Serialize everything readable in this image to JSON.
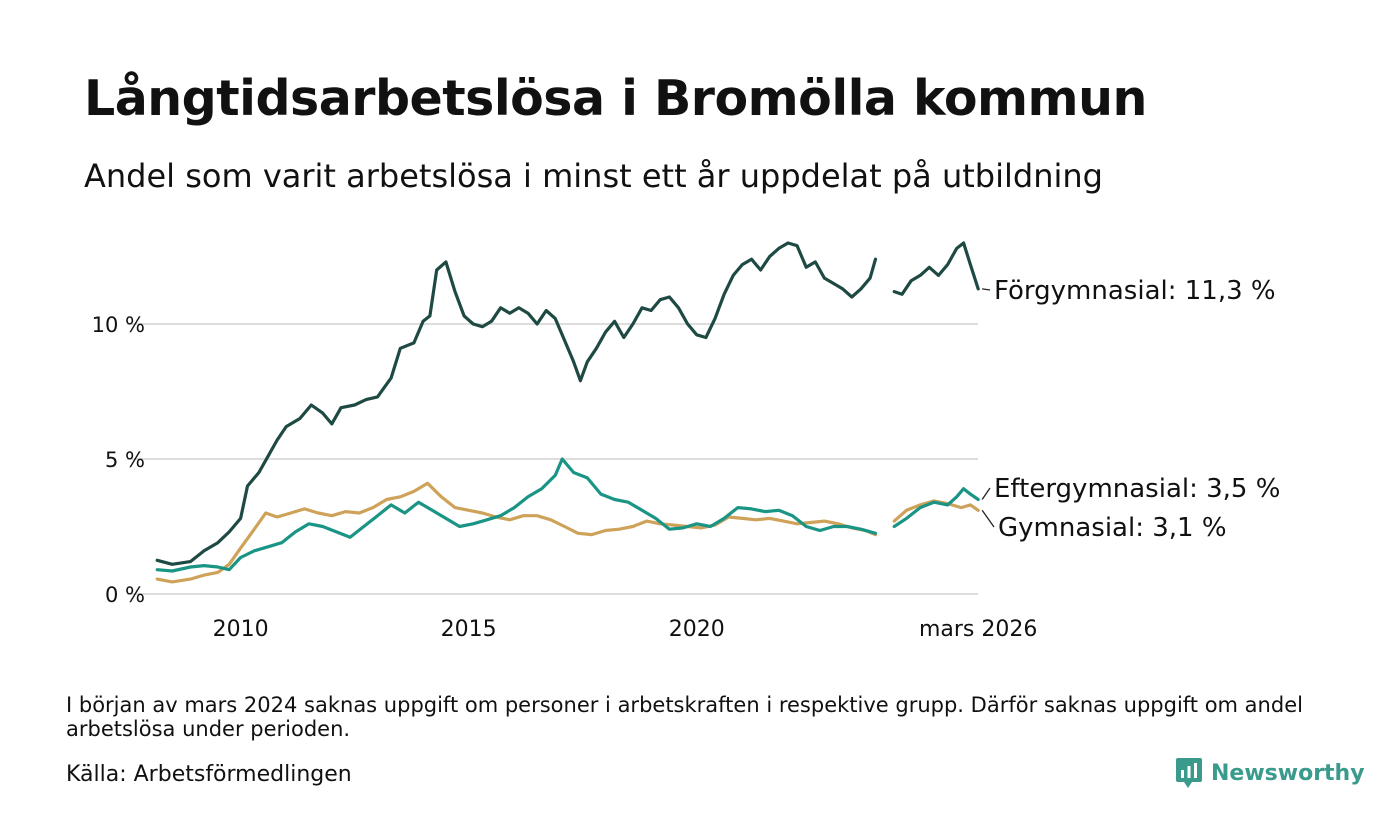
{
  "header": {
    "title": "Långtidsarbetslösa i Bromölla kommun",
    "subtitle": "Andel som varit arbetslösa i minst ett år uppdelat på utbildning"
  },
  "chart_data": {
    "type": "line",
    "x_start": "2008-03",
    "x_end": "2026-03",
    "y_ticks": [
      {
        "value": 0,
        "label": "0 %"
      },
      {
        "value": 5,
        "label": "5 %"
      },
      {
        "value": 10,
        "label": "10 %"
      }
    ],
    "x_ticks": [
      {
        "date": 2010.0,
        "label": "2010"
      },
      {
        "date": 2015.0,
        "label": "2015"
      },
      {
        "date": 2020.0,
        "label": "2020"
      },
      {
        "date": 2026.17,
        "label": "mars 2026"
      }
    ],
    "ylim": [
      0,
      13.5
    ],
    "gap": {
      "from": 2023.95,
      "to": 2024.3
    },
    "series": [
      {
        "name": "Förgymnasial",
        "end_label": "Förgymnasial: 11,3 %",
        "color": "#1f4a44",
        "points": [
          [
            2008.17,
            1.25
          ],
          [
            2008.5,
            1.1
          ],
          [
            2008.9,
            1.2
          ],
          [
            2009.2,
            1.6
          ],
          [
            2009.5,
            1.9
          ],
          [
            2009.75,
            2.3
          ],
          [
            2010.0,
            2.8
          ],
          [
            2010.15,
            4.0
          ],
          [
            2010.4,
            4.5
          ],
          [
            2010.6,
            5.1
          ],
          [
            2010.8,
            5.7
          ],
          [
            2011.0,
            6.2
          ],
          [
            2011.3,
            6.5
          ],
          [
            2011.55,
            7.0
          ],
          [
            2011.8,
            6.7
          ],
          [
            2012.0,
            6.3
          ],
          [
            2012.2,
            6.9
          ],
          [
            2012.5,
            7.0
          ],
          [
            2012.75,
            7.2
          ],
          [
            2013.0,
            7.3
          ],
          [
            2013.3,
            8.0
          ],
          [
            2013.5,
            9.1
          ],
          [
            2013.8,
            9.3
          ],
          [
            2014.0,
            10.1
          ],
          [
            2014.15,
            10.3
          ],
          [
            2014.3,
            12.0
          ],
          [
            2014.5,
            12.3
          ],
          [
            2014.7,
            11.2
          ],
          [
            2014.9,
            10.3
          ],
          [
            2015.1,
            10.0
          ],
          [
            2015.3,
            9.9
          ],
          [
            2015.5,
            10.1
          ],
          [
            2015.7,
            10.6
          ],
          [
            2015.9,
            10.4
          ],
          [
            2016.1,
            10.6
          ],
          [
            2016.3,
            10.4
          ],
          [
            2016.5,
            10.0
          ],
          [
            2016.7,
            10.5
          ],
          [
            2016.9,
            10.2
          ],
          [
            2017.1,
            9.4
          ],
          [
            2017.3,
            8.6
          ],
          [
            2017.45,
            7.9
          ],
          [
            2017.6,
            8.6
          ],
          [
            2017.8,
            9.1
          ],
          [
            2018.0,
            9.7
          ],
          [
            2018.2,
            10.1
          ],
          [
            2018.4,
            9.5
          ],
          [
            2018.6,
            10.0
          ],
          [
            2018.8,
            10.6
          ],
          [
            2019.0,
            10.5
          ],
          [
            2019.2,
            10.9
          ],
          [
            2019.4,
            11.0
          ],
          [
            2019.6,
            10.6
          ],
          [
            2019.8,
            10.0
          ],
          [
            2020.0,
            9.6
          ],
          [
            2020.2,
            9.5
          ],
          [
            2020.4,
            10.2
          ],
          [
            2020.6,
            11.1
          ],
          [
            2020.8,
            11.8
          ],
          [
            2021.0,
            12.2
          ],
          [
            2021.2,
            12.4
          ],
          [
            2021.4,
            12.0
          ],
          [
            2021.6,
            12.5
          ],
          [
            2021.8,
            12.8
          ],
          [
            2022.0,
            13.0
          ],
          [
            2022.2,
            12.9
          ],
          [
            2022.4,
            12.1
          ],
          [
            2022.6,
            12.3
          ],
          [
            2022.8,
            11.7
          ],
          [
            2023.0,
            11.5
          ],
          [
            2023.2,
            11.3
          ],
          [
            2023.4,
            11.0
          ],
          [
            2023.6,
            11.3
          ],
          [
            2023.8,
            11.7
          ],
          [
            2023.92,
            12.4
          ],
          null,
          [
            2024.33,
            11.2
          ],
          [
            2024.5,
            11.1
          ],
          [
            2024.7,
            11.6
          ],
          [
            2024.9,
            11.8
          ],
          [
            2025.1,
            12.1
          ],
          [
            2025.3,
            11.8
          ],
          [
            2025.5,
            12.2
          ],
          [
            2025.7,
            12.8
          ],
          [
            2025.85,
            13.0
          ],
          [
            2026.0,
            12.2
          ],
          [
            2026.17,
            11.3
          ]
        ]
      },
      {
        "name": "Eftergymnasial",
        "end_label": "Eftergymnasial:  3,5 %",
        "color": "#1a9585",
        "points": [
          [
            2008.17,
            0.9
          ],
          [
            2008.5,
            0.85
          ],
          [
            2008.9,
            1.0
          ],
          [
            2009.2,
            1.05
          ],
          [
            2009.5,
            1.0
          ],
          [
            2009.75,
            0.9
          ],
          [
            2010.0,
            1.35
          ],
          [
            2010.3,
            1.6
          ],
          [
            2010.6,
            1.75
          ],
          [
            2010.9,
            1.9
          ],
          [
            2011.2,
            2.3
          ],
          [
            2011.5,
            2.6
          ],
          [
            2011.8,
            2.5
          ],
          [
            2012.1,
            2.3
          ],
          [
            2012.4,
            2.1
          ],
          [
            2012.7,
            2.5
          ],
          [
            2013.0,
            2.9
          ],
          [
            2013.3,
            3.3
          ],
          [
            2013.6,
            3.0
          ],
          [
            2013.9,
            3.4
          ],
          [
            2014.2,
            3.1
          ],
          [
            2014.5,
            2.8
          ],
          [
            2014.8,
            2.5
          ],
          [
            2015.1,
            2.6
          ],
          [
            2015.4,
            2.75
          ],
          [
            2015.7,
            2.9
          ],
          [
            2016.0,
            3.2
          ],
          [
            2016.3,
            3.6
          ],
          [
            2016.6,
            3.9
          ],
          [
            2016.9,
            4.4
          ],
          [
            2017.05,
            5.0
          ],
          [
            2017.3,
            4.5
          ],
          [
            2017.6,
            4.3
          ],
          [
            2017.9,
            3.7
          ],
          [
            2018.2,
            3.5
          ],
          [
            2018.5,
            3.4
          ],
          [
            2018.8,
            3.1
          ],
          [
            2019.1,
            2.8
          ],
          [
            2019.4,
            2.4
          ],
          [
            2019.7,
            2.45
          ],
          [
            2020.0,
            2.6
          ],
          [
            2020.3,
            2.5
          ],
          [
            2020.6,
            2.8
          ],
          [
            2020.9,
            3.2
          ],
          [
            2021.2,
            3.15
          ],
          [
            2021.5,
            3.05
          ],
          [
            2021.8,
            3.1
          ],
          [
            2022.1,
            2.9
          ],
          [
            2022.4,
            2.5
          ],
          [
            2022.7,
            2.35
          ],
          [
            2023.0,
            2.5
          ],
          [
            2023.3,
            2.5
          ],
          [
            2023.6,
            2.4
          ],
          [
            2023.92,
            2.25
          ],
          null,
          [
            2024.33,
            2.5
          ],
          [
            2024.6,
            2.8
          ],
          [
            2024.9,
            3.2
          ],
          [
            2025.2,
            3.4
          ],
          [
            2025.5,
            3.3
          ],
          [
            2025.7,
            3.6
          ],
          [
            2025.85,
            3.9
          ],
          [
            2026.0,
            3.7
          ],
          [
            2026.17,
            3.5
          ]
        ]
      },
      {
        "name": "Gymnasial",
        "end_label": "Gymnasial:  3,1 %",
        "color": "#cfa25a",
        "points": [
          [
            2008.17,
            0.55
          ],
          [
            2008.5,
            0.45
          ],
          [
            2008.9,
            0.55
          ],
          [
            2009.2,
            0.7
          ],
          [
            2009.5,
            0.8
          ],
          [
            2009.75,
            1.1
          ],
          [
            2010.0,
            1.7
          ],
          [
            2010.3,
            2.4
          ],
          [
            2010.55,
            3.0
          ],
          [
            2010.8,
            2.85
          ],
          [
            2011.1,
            3.0
          ],
          [
            2011.4,
            3.15
          ],
          [
            2011.7,
            3.0
          ],
          [
            2012.0,
            2.9
          ],
          [
            2012.3,
            3.05
          ],
          [
            2012.6,
            3.0
          ],
          [
            2012.9,
            3.2
          ],
          [
            2013.2,
            3.5
          ],
          [
            2013.5,
            3.6
          ],
          [
            2013.8,
            3.8
          ],
          [
            2014.1,
            4.1
          ],
          [
            2014.4,
            3.6
          ],
          [
            2014.7,
            3.2
          ],
          [
            2015.0,
            3.1
          ],
          [
            2015.3,
            3.0
          ],
          [
            2015.6,
            2.85
          ],
          [
            2015.9,
            2.75
          ],
          [
            2016.2,
            2.9
          ],
          [
            2016.5,
            2.9
          ],
          [
            2016.8,
            2.75
          ],
          [
            2017.1,
            2.5
          ],
          [
            2017.4,
            2.25
          ],
          [
            2017.7,
            2.2
          ],
          [
            2018.0,
            2.35
          ],
          [
            2018.3,
            2.4
          ],
          [
            2018.6,
            2.5
          ],
          [
            2018.9,
            2.7
          ],
          [
            2019.2,
            2.6
          ],
          [
            2019.5,
            2.55
          ],
          [
            2019.8,
            2.5
          ],
          [
            2020.1,
            2.45
          ],
          [
            2020.4,
            2.55
          ],
          [
            2020.7,
            2.85
          ],
          [
            2021.0,
            2.8
          ],
          [
            2021.3,
            2.75
          ],
          [
            2021.6,
            2.8
          ],
          [
            2021.9,
            2.7
          ],
          [
            2022.2,
            2.6
          ],
          [
            2022.5,
            2.65
          ],
          [
            2022.8,
            2.7
          ],
          [
            2023.1,
            2.6
          ],
          [
            2023.4,
            2.45
          ],
          [
            2023.7,
            2.35
          ],
          [
            2023.92,
            2.2
          ],
          null,
          [
            2024.33,
            2.7
          ],
          [
            2024.6,
            3.1
          ],
          [
            2024.9,
            3.3
          ],
          [
            2025.2,
            3.45
          ],
          [
            2025.5,
            3.35
          ],
          [
            2025.8,
            3.2
          ],
          [
            2026.0,
            3.3
          ],
          [
            2026.17,
            3.1
          ]
        ]
      }
    ]
  },
  "footer": {
    "note": "I början av mars 2024 saknas uppgift om personer i arbetskraften i respektive grupp. Därför saknas uppgift om andel arbetslösa under perioden.",
    "source": "Källa: Arbetsförmedlingen",
    "brand": "Newsworthy",
    "brand_color": "#3a9a8c"
  }
}
